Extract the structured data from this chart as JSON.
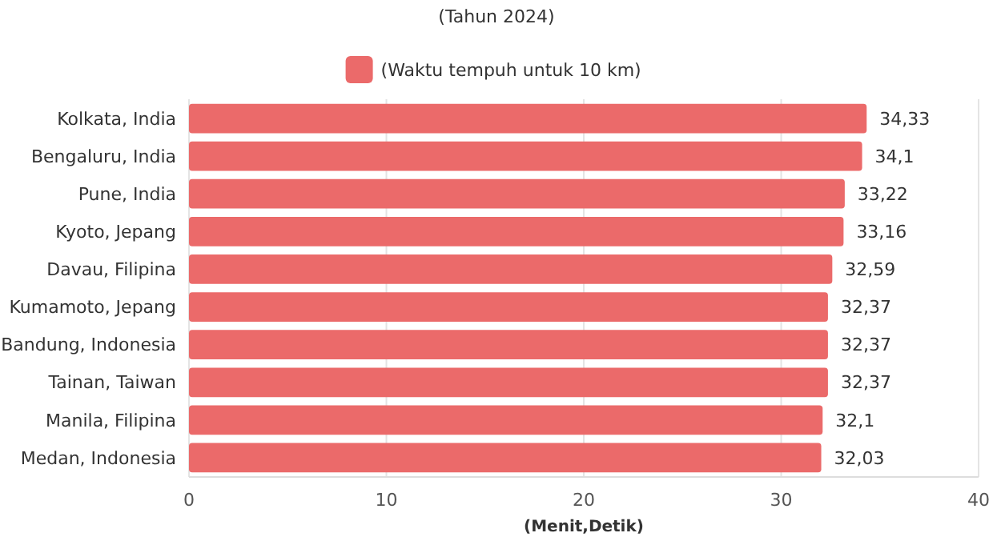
{
  "chart_data": {
    "type": "bar",
    "orientation": "horizontal",
    "title": "(Tahun 2024)",
    "xlabel": "(Menit,Detik)",
    "categories": [
      "Kolkata, India",
      "Bengaluru, India",
      "Pune, India",
      "Kyoto, Jepang",
      "Davau, Filipina",
      "Kumamoto, Jepang",
      "Bandung, Indonesia",
      "Tainan, Taiwan",
      "Manila, Filipina",
      "Medan, Indonesia"
    ],
    "series": [
      {
        "name": "(Waktu tempuh untuk 10 km)",
        "color": "#eb6a6a",
        "values": [
          34.33,
          34.1,
          33.22,
          33.16,
          32.59,
          32.37,
          32.37,
          32.37,
          32.1,
          32.03
        ],
        "value_labels": [
          "34,33",
          "34,1",
          "33,22",
          "33,16",
          "32,59",
          "32,37",
          "32,37",
          "32,37",
          "32,1",
          "32,03"
        ]
      }
    ],
    "xlim": [
      0,
      40
    ],
    "xticks": [
      0,
      10,
      20,
      30,
      40
    ],
    "grid": "x",
    "legend": "top"
  }
}
